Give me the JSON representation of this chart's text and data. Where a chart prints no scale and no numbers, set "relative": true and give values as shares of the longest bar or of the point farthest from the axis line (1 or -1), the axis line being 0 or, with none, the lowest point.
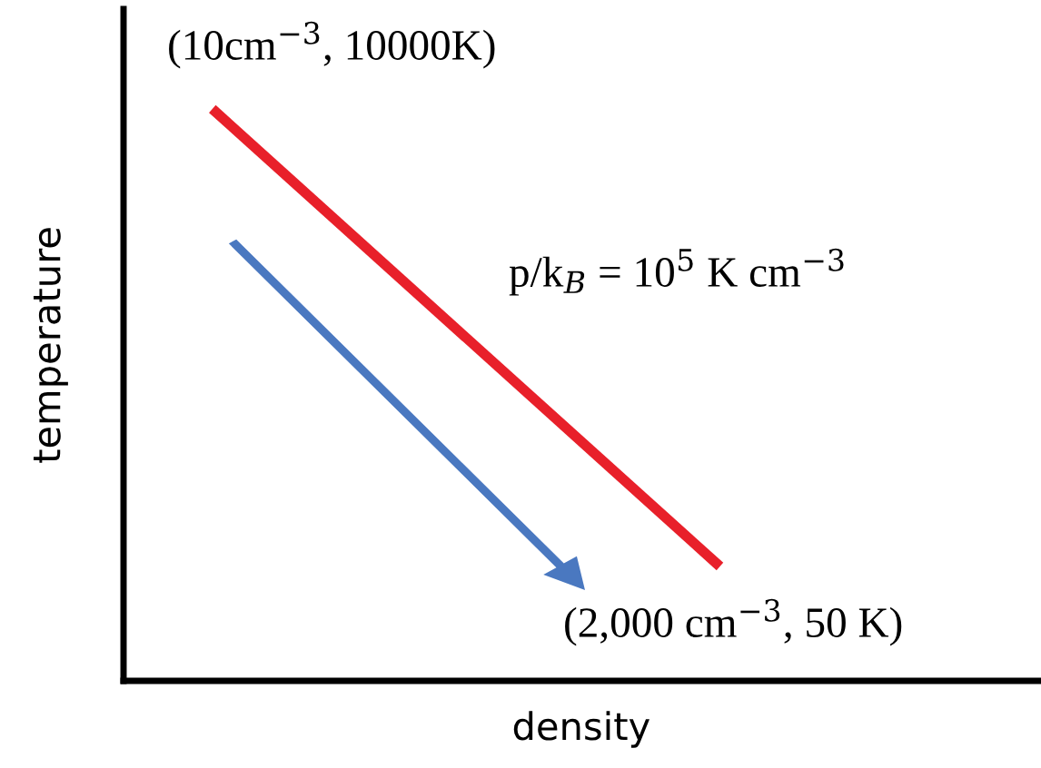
{
  "chart_data": {
    "type": "line",
    "relative": true,
    "xlabel": "density",
    "ylabel": "temperature",
    "categories": [
      null,
      null
    ],
    "series": [
      {
        "color": "#e8202a",
        "values": [
          1,
          0.2
        ]
      }
    ],
    "annotations": [
      "(10cm$^{−3}$, 10000K)",
      "p/k$_{B}$ = 10$^{5}$ K cm$^{−3}$",
      "(2,000 cm$^{−3}$, 50 K)"
    ],
    "marker": "none",
    "line_style": "solid"
  }
}
